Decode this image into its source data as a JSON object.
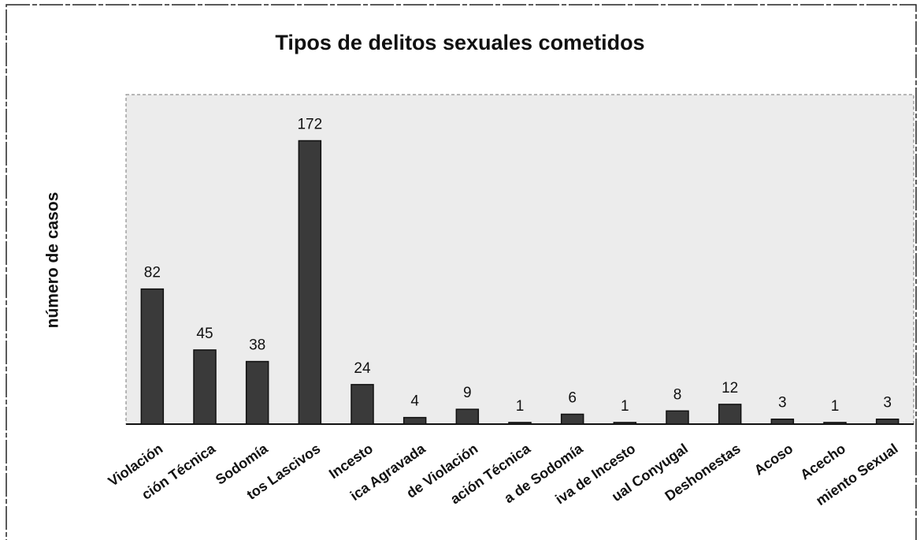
{
  "chart_data": {
    "type": "bar",
    "title": "Tipos de delitos sexuales cometidos",
    "y_label": "número de casos",
    "categories": [
      "Violación",
      "ción Técnica",
      "Sodomía",
      "tos Lascivos",
      "Incesto",
      "ica Agravada",
      "de Violación",
      "ación Técnica",
      "a de Sodomía",
      "iva de Incesto",
      "ual Conyugal",
      "Deshonestas",
      "Acoso",
      "Acecho",
      "miento Sexual"
    ],
    "values": [
      82,
      45,
      38,
      172,
      24,
      4,
      9,
      1,
      6,
      1,
      8,
      12,
      3,
      1,
      3
    ],
    "color": "#3a3a3a",
    "ylim": [
      0,
      200
    ]
  }
}
